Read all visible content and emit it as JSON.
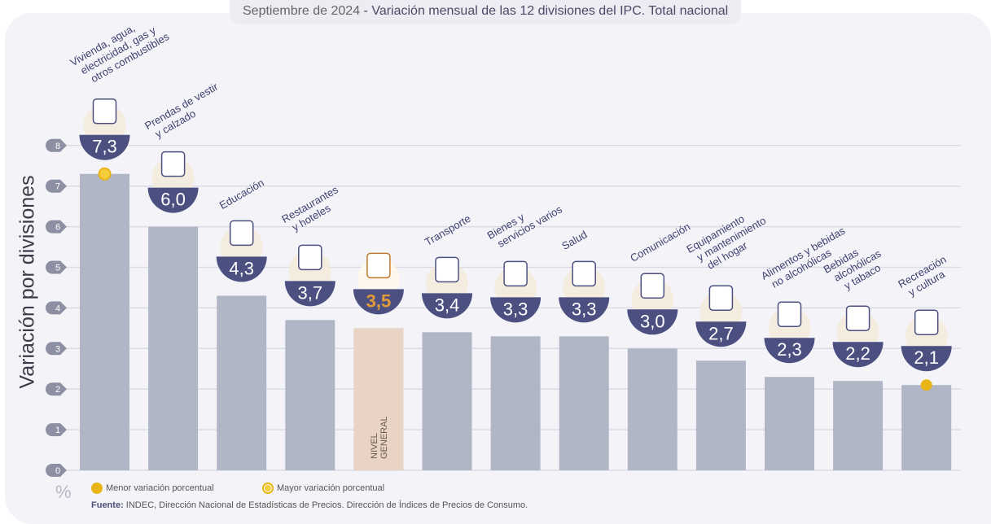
{
  "title": {
    "date": "Septiembre de 2024",
    "separator": " - ",
    "text": "Variación mensual de las 12 divisiones del IPC. Total nacional"
  },
  "y_axis_label": "Variación por divisiones",
  "unit_label": "%",
  "legend": {
    "min": "Menor variación porcentual",
    "max": "Mayor variación porcentual"
  },
  "source": {
    "label": "Fuente:",
    "text": " INDEC, Dirección Nacional de Estadísticas de Precios. Dirección de Índices de Precios de Consumo."
  },
  "colors": {
    "bar": "#b0b6c6",
    "general_bar": "#e8d3c5",
    "badge": "#4b5080",
    "general_value": "#e39a3b",
    "marker": "#e8b416",
    "tick": "#8d8fa2",
    "grid": "#dadbe4"
  },
  "chart_data": {
    "type": "bar",
    "title": "Septiembre de 2024 - Variación mensual de las 12 divisiones del IPC. Total nacional",
    "xlabel": "",
    "ylabel": "Variación por divisiones",
    "ylim": [
      0,
      8
    ],
    "yticks": [
      0,
      1,
      2,
      3,
      4,
      5,
      6,
      7,
      8
    ],
    "grid": true,
    "categories": [
      "Vivienda, agua, electricidad, gas y otros combustibles",
      "Prendas de vestir y calzado",
      "Educación",
      "Restaurantes y hoteles",
      "Nivel general",
      "Transporte",
      "Bienes y servicios varios",
      "Salud",
      "Comunicación",
      "Equipamiento y mantenimiento del hogar",
      "Alimentos y bebidas no alcohólicas",
      "Bebidas alcohólicas y tabaco",
      "Recreación y cultura"
    ],
    "values": [
      7.3,
      6.0,
      4.3,
      3.7,
      3.5,
      3.4,
      3.3,
      3.3,
      3.0,
      2.7,
      2.3,
      2.2,
      2.1
    ],
    "value_labels": [
      "7,3",
      "6,0",
      "4,3",
      "3,7",
      "3,5",
      "3,4",
      "3,3",
      "3,3",
      "3,0",
      "2,7",
      "2,3",
      "2,2",
      "2,1"
    ],
    "label_lines": [
      [
        "Vivienda, agua,",
        "electricidad, gas y",
        "otros combustibles"
      ],
      [
        "Prendas de vestir",
        "y calzado"
      ],
      [
        "Educación"
      ],
      [
        "Restaurantes",
        "y hoteles"
      ],
      [],
      [
        "Transporte"
      ],
      [
        "Bienes y",
        "servicios varios"
      ],
      [
        "Salud"
      ],
      [
        "Comunicación"
      ],
      [
        "Equipamiento",
        "y mantenimiento",
        "del hogar"
      ],
      [
        "Alimentos y bebidas",
        "no alcohólicas"
      ],
      [
        "Bebidas",
        "alcohólicas",
        "y tabaco"
      ],
      [
        "Recreación",
        "y cultura"
      ]
    ],
    "icons": [
      "house-utilities-icon",
      "clothing-icon",
      "education-icon",
      "restaurant-icon",
      "shopping-bag-icon",
      "transport-icon",
      "grooming-icon",
      "health-icon",
      "phone-icon",
      "appliance-icon",
      "food-icon",
      "alcohol-icon",
      "recreation-icon"
    ],
    "general_index": 4,
    "general_label": [
      "NIVEL",
      "GENERAL"
    ],
    "max_index": 0,
    "min_index": 12,
    "legend": [
      "Menor variación porcentual",
      "Mayor variación porcentual"
    ]
  }
}
